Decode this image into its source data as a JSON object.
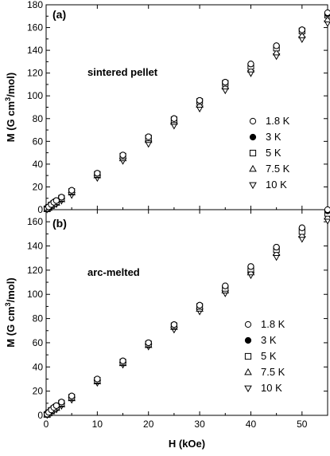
{
  "chart_data": [
    {
      "type": "scatter",
      "panel_label": "(a)",
      "annotation": "sintered pellet",
      "ylabel": "M (G cm³/mol)",
      "ylabel_parts": [
        "M (G cm",
        "3",
        "/mol)"
      ],
      "xlabel": "",
      "xlim": [
        0,
        55
      ],
      "ylim": [
        0,
        180
      ],
      "xticks": [
        "0",
        "10",
        "20",
        "30",
        "40",
        "50"
      ],
      "yticks": [
        "0",
        "20",
        "40",
        "60",
        "80",
        "100",
        "120",
        "140",
        "160",
        "180"
      ],
      "legend_position": "right",
      "series": [
        {
          "name": "1.8 K",
          "marker": "circle-open",
          "x": [
            0.2,
            0.5,
            1,
            1.5,
            2,
            3,
            5,
            10,
            15,
            20,
            25,
            30,
            35,
            40,
            45,
            50,
            55
          ],
          "y": [
            1,
            2.5,
            4.5,
            6.5,
            8,
            11,
            17,
            32,
            48,
            64,
            80,
            96,
            112,
            128,
            144,
            158,
            173
          ]
        },
        {
          "name": "3 K",
          "marker": "circle-filled",
          "x": [
            0.2,
            0.5,
            1,
            1.5,
            2,
            3,
            5,
            10,
            15,
            20,
            25,
            30,
            35,
            40,
            45,
            50,
            55
          ],
          "y": [
            1,
            2.5,
            4.5,
            6.5,
            8,
            11,
            17,
            32,
            48,
            64,
            80,
            96,
            112,
            128,
            144,
            158,
            172
          ]
        },
        {
          "name": "5 K",
          "marker": "square-open",
          "x": [
            0.2,
            0.5,
            1,
            1.5,
            2,
            3,
            5,
            10,
            15,
            20,
            25,
            30,
            35,
            40,
            45,
            50,
            55
          ],
          "y": [
            0.8,
            2,
            4,
            5.5,
            7,
            10,
            16,
            31,
            47,
            63,
            79,
            95,
            111,
            126,
            142,
            157,
            171
          ]
        },
        {
          "name": "7.5 K",
          "marker": "triangle-up-open",
          "x": [
            0.2,
            0.5,
            1,
            1.5,
            2,
            3,
            5,
            10,
            15,
            20,
            25,
            30,
            35,
            40,
            45,
            50,
            55
          ],
          "y": [
            0.6,
            1.6,
            3.2,
            4.8,
            6,
            9,
            15,
            30,
            45,
            61,
            77,
            92,
            108,
            123,
            138,
            153,
            167
          ]
        },
        {
          "name": "10 K",
          "marker": "triangle-down-open",
          "x": [
            0.2,
            0.5,
            1,
            1.5,
            2,
            3,
            5,
            10,
            15,
            20,
            25,
            30,
            35,
            40,
            45,
            50,
            55
          ],
          "y": [
            0.4,
            1.2,
            2.5,
            4,
            5,
            8,
            13,
            28,
            43,
            58,
            74,
            89,
            105,
            120,
            135,
            150,
            164
          ]
        }
      ]
    },
    {
      "type": "scatter",
      "panel_label": "(b)",
      "annotation": "arc-melted",
      "ylabel": "M (G cm³/mol)",
      "ylabel_parts": [
        "M (G cm",
        "3",
        "/mol)"
      ],
      "xlabel": "H (kOe)",
      "xlim": [
        0,
        55
      ],
      "ylim": [
        0,
        170
      ],
      "xticks": [
        "0",
        "10",
        "20",
        "30",
        "40",
        "50"
      ],
      "yticks": [
        "0",
        "20",
        "40",
        "60",
        "80",
        "100",
        "120",
        "140",
        "160"
      ],
      "legend_position": "right",
      "series": [
        {
          "name": "1.8 K",
          "marker": "circle-open",
          "x": [
            0.2,
            0.5,
            1,
            1.5,
            2,
            3,
            5,
            10,
            15,
            20,
            25,
            30,
            35,
            40,
            45,
            50,
            55
          ],
          "y": [
            1,
            2.5,
            4.5,
            6.5,
            8,
            11,
            16,
            30,
            45,
            60,
            75,
            91,
            107,
            123,
            139,
            155,
            170
          ]
        },
        {
          "name": "3 K",
          "marker": "circle-filled",
          "x": [
            0.2,
            0.5,
            1,
            1.5,
            2,
            3,
            5,
            10,
            15,
            20,
            25,
            30,
            35,
            40,
            45,
            50,
            55
          ],
          "y": [
            1,
            2.5,
            4.5,
            6.5,
            8,
            11,
            16,
            30,
            45,
            60,
            75,
            91,
            107,
            123,
            139,
            155,
            169
          ]
        },
        {
          "name": "5 K",
          "marker": "square-open",
          "x": [
            0.2,
            0.5,
            1,
            1.5,
            2,
            3,
            5,
            10,
            15,
            20,
            25,
            30,
            35,
            40,
            45,
            50,
            55
          ],
          "y": [
            0.8,
            2,
            4,
            5.5,
            7,
            10,
            15,
            29,
            44,
            59,
            74,
            90,
            105,
            121,
            137,
            152,
            167
          ]
        },
        {
          "name": "7.5 K",
          "marker": "triangle-up-open",
          "x": [
            0.2,
            0.5,
            1,
            1.5,
            2,
            3,
            5,
            10,
            15,
            20,
            25,
            30,
            35,
            40,
            45,
            50,
            55
          ],
          "y": [
            0.6,
            1.6,
            3.2,
            4.8,
            6,
            9,
            14,
            28,
            43,
            58,
            73,
            88,
            103,
            118,
            134,
            149,
            164
          ]
        },
        {
          "name": "10 K",
          "marker": "triangle-down-open",
          "x": [
            0.2,
            0.5,
            1,
            1.5,
            2,
            3,
            5,
            10,
            15,
            20,
            25,
            30,
            35,
            40,
            45,
            50,
            55
          ],
          "y": [
            0.4,
            1.2,
            2.5,
            4,
            5,
            8,
            13,
            27,
            42,
            57,
            71,
            86,
            101,
            116,
            131,
            146,
            161
          ]
        }
      ]
    }
  ]
}
